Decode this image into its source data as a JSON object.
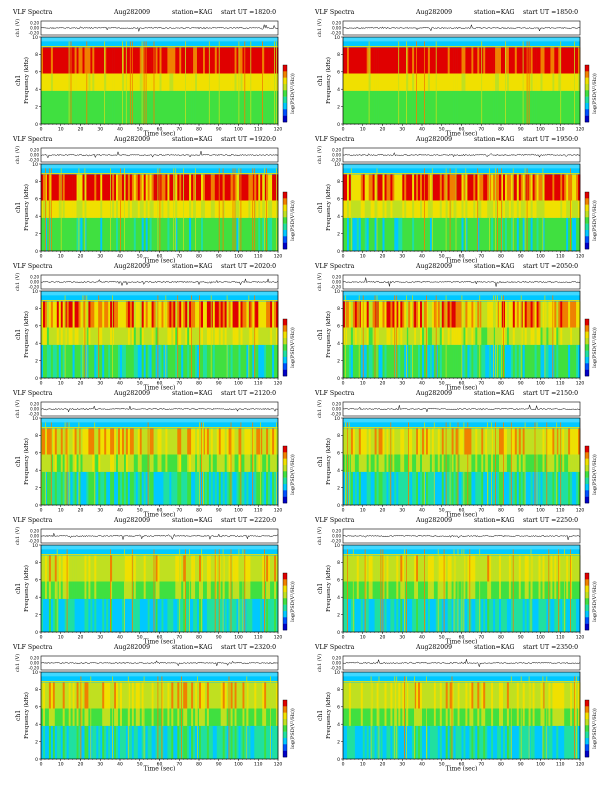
{
  "chart_data": {
    "type": "heatmap",
    "panel_common": {
      "title_left": "VLF Spectra",
      "date": "Aug282009",
      "station": "station=KAG",
      "start_label": "start  UT =",
      "xlabel": "Time  (sec)",
      "ylabel_freq": "Frequency  (kHz)",
      "ylabel_channel": "ch1",
      "ylabel_wave": "ch1 (V)",
      "colorbar_label": "log(PSD(V²/Hz))",
      "x_ticks": [
        "0",
        "10",
        "20",
        "30",
        "40",
        "50",
        "60",
        "70",
        "80",
        "90",
        "100",
        "110",
        "120"
      ],
      "y_ticks_freq": [
        "0",
        "2",
        "4",
        "6",
        "8",
        "10"
      ],
      "y_ticks_wave": [
        "0.20",
        "0.00",
        "-0.20"
      ],
      "xlim": [
        0,
        120
      ],
      "ylim_freq": [
        0,
        10
      ],
      "colormap": [
        "#0000c8",
        "#0050ff",
        "#00c8ff",
        "#20e0a0",
        "#40e040",
        "#c0e020",
        "#f0e000",
        "#f08000",
        "#e00000"
      ]
    },
    "panels": [
      {
        "start_ut": "1820:0",
        "red_level": 0.9
      },
      {
        "start_ut": "1850:0",
        "red_level": 0.88
      },
      {
        "start_ut": "1920:0",
        "red_level": 0.78
      },
      {
        "start_ut": "1950:0",
        "red_level": 0.72
      },
      {
        "start_ut": "2020:0",
        "red_level": 0.68
      },
      {
        "start_ut": "2050:0",
        "red_level": 0.62
      },
      {
        "start_ut": "2120:0",
        "red_level": 0.5
      },
      {
        "start_ut": "2150:0",
        "red_level": 0.45
      },
      {
        "start_ut": "2220:0",
        "red_level": 0.38
      },
      {
        "start_ut": "2250:0",
        "red_level": 0.36
      },
      {
        "start_ut": "2320:0",
        "red_level": 0.42
      },
      {
        "start_ut": "2350:0",
        "red_level": 0.4
      }
    ]
  }
}
